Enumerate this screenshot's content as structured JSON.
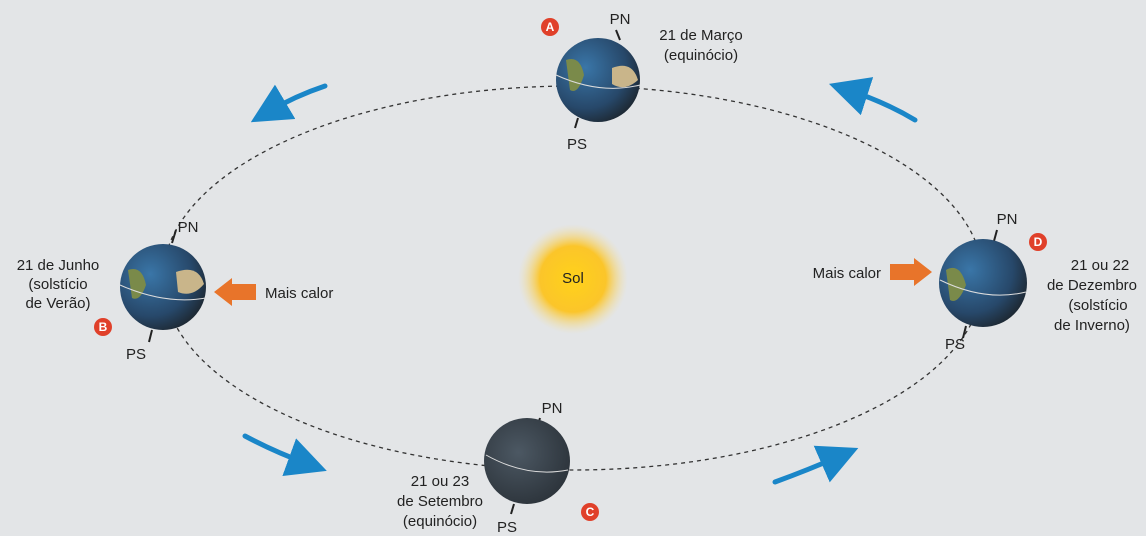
{
  "sun": {
    "label": "Sol"
  },
  "positions": [
    {
      "letter": "A",
      "pole_north": "PN",
      "pole_south": "PS",
      "date": [
        "21 de Março",
        "(equinócio)"
      ]
    },
    {
      "letter": "B",
      "pole_north": "PN",
      "pole_south": "PS",
      "date": [
        "21 de Junho",
        "(solstício",
        "de Verão)"
      ],
      "heat": "Mais calor"
    },
    {
      "letter": "C",
      "pole_north": "PN",
      "pole_south": "PS",
      "date": [
        "21 ou 23",
        "de Setembro",
        "(equinócio)"
      ]
    },
    {
      "letter": "D",
      "pole_north": "PN",
      "pole_south": "PS",
      "date": [
        "21 ou 22",
        "de Dezembro",
        "(solstício",
        "de Inverno)"
      ],
      "heat": "Mais calor"
    }
  ]
}
